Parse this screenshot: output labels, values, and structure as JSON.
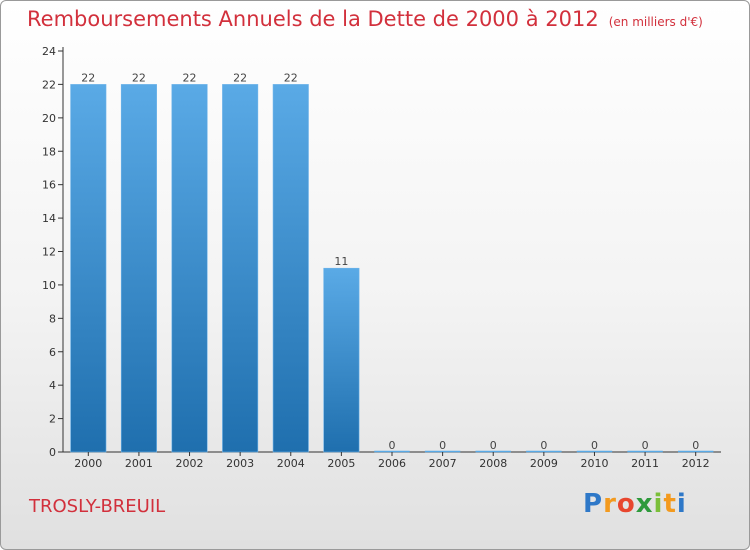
{
  "header": {
    "title": "Remboursements Annuels de la Dette de 2000 à 2012",
    "unit": "(en milliers d'€)"
  },
  "footer": {
    "city": "TROSLY-BREUIL",
    "logo": "Proxiti"
  },
  "colors": {
    "title": "#d2303c",
    "bar_top": "#5aaae6",
    "bar_bottom": "#1f6fae"
  },
  "chart_data": {
    "type": "bar",
    "categories": [
      "2000",
      "2001",
      "2002",
      "2003",
      "2004",
      "2005",
      "2006",
      "2007",
      "2008",
      "2009",
      "2010",
      "2011",
      "2012"
    ],
    "values": [
      22,
      22,
      22,
      22,
      22,
      11,
      0,
      0,
      0,
      0,
      0,
      0,
      0
    ],
    "data_labels": [
      "22",
      "22",
      "22",
      "22",
      "22",
      "11",
      "0",
      "0",
      "0",
      "0",
      "0",
      "0",
      "0"
    ],
    "yticks": [
      "0",
      "2",
      "4",
      "6",
      "8",
      "10",
      "12",
      "14",
      "16",
      "18",
      "20",
      "22",
      "24"
    ],
    "ylim": [
      0,
      24
    ],
    "grid": false,
    "legend": "none"
  }
}
